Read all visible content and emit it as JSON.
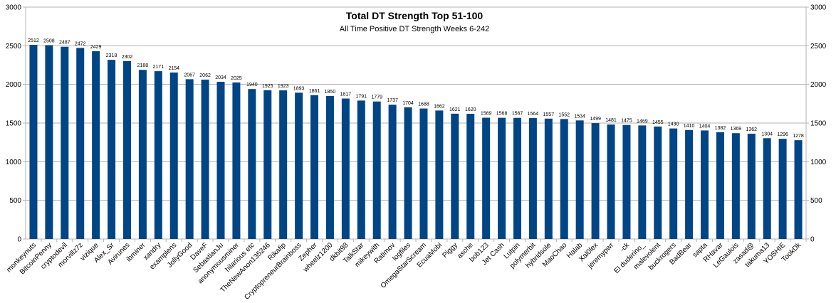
{
  "chart_data": {
    "type": "bar",
    "title": "Total DT Strength Top 51-100",
    "subtitle": "All Time Positive DT Strength Weeks 6-242",
    "xlabel": "",
    "ylabel": "",
    "ylim": [
      0,
      3000
    ],
    "yticks": [
      0,
      500,
      1000,
      1500,
      2000,
      2500,
      3000
    ],
    "grid": true,
    "legend": "none",
    "secondary_y_axis": true,
    "bar_color": "#004586",
    "categories": [
      "monkeynuts",
      "BitcoinPenny",
      "cryptodevil",
      "morvillz7z",
      "vizique",
      "Alex_Sr",
      "Avirunes",
      "ibminer",
      "xandry",
      "examplens",
      "JollyGood",
      "DaveF",
      "SebastianJu",
      "anonymousminer",
      "hilarious etc",
      "TheNewAnon135246",
      "Rikafip",
      "CryptopreneurBrainboss",
      "Zepher",
      "wheelz1200",
      "dkbit98",
      "TalkStar",
      "mikeywith",
      "Ratimov",
      "logfiles",
      "OmegaStarScream",
      "EcuaMobi",
      "Piggy",
      "asche",
      "bob123",
      "Jet Cash",
      "Lutpin",
      "polymerbit",
      "hybridsole",
      "MaoChao",
      "Halab",
      "Xal0lex",
      "jeremypwr",
      "-ck",
      "El duderino_",
      "malevolent",
      "buckrogers",
      "BadBear",
      "sapta",
      "RHavar",
      "LeGaulois",
      "zasad@",
      "takuma13",
      "YOSHIE",
      "TookDk"
    ],
    "values": [
      2512,
      2508,
      2487,
      2472,
      2429,
      2318,
      2302,
      2188,
      2171,
      2154,
      2067,
      2062,
      2034,
      2025,
      1940,
      1925,
      1923,
      1893,
      1861,
      1850,
      1817,
      1791,
      1779,
      1737,
      1704,
      1688,
      1662,
      1621,
      1620,
      1569,
      1568,
      1567,
      1564,
      1557,
      1552,
      1534,
      1499,
      1481,
      1475,
      1469,
      1455,
      1430,
      1410,
      1404,
      1382,
      1369,
      1362,
      1304,
      1296,
      1278
    ]
  }
}
